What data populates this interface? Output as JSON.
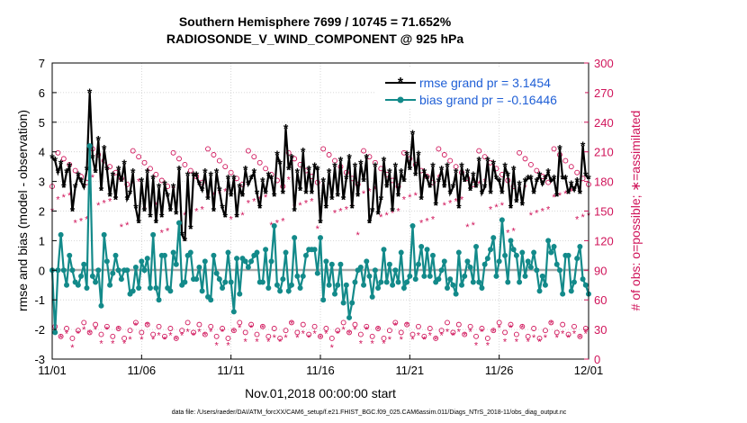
{
  "chart_data": {
    "type": "line",
    "title": "Southern Hemisphere 7699 / 10745 = 71.652%",
    "subtitle": "RADIOSONDE_V_WIND_COMPONENT @ 925 hPa",
    "xlabel": "Nov.01,2018 00:00:00 start",
    "ylabel": "rmse and bias (model - observation)",
    "y2label": "# of obs: o=possible; ∗=assimilated",
    "footer": "data file: /Users/raeder/DAI/ATM_forcXX/CAM6_setup/f.e21.FHIST_BGC.f09_025.CAM6assim.011/Diags_NTrS_2018-11/obs_diag_output.nc",
    "x_ticks": [
      "11/01",
      "11/06",
      "11/11",
      "11/16",
      "11/21",
      "11/26",
      "12/01"
    ],
    "y_ticks": [
      "-3",
      "-2",
      "-1",
      "0",
      "1",
      "2",
      "3",
      "4",
      "5",
      "6",
      "7"
    ],
    "y2_ticks": [
      "0",
      "30",
      "60",
      "90",
      "120",
      "150",
      "180",
      "210",
      "240",
      "270",
      "300"
    ],
    "ylim": [
      -3,
      7
    ],
    "y2lim": [
      0,
      300
    ],
    "xlim": [
      0,
      30
    ],
    "grid": true,
    "legend_position": "top-right",
    "colors": {
      "rmse": "#000000",
      "bias": "#138a8a",
      "obs": "#d0145a",
      "zero": "#aaaaaa"
    },
    "series": [
      {
        "name": "rmse grand pr = 3.1454",
        "values": [
          3.8,
          3.7,
          3.3,
          3.6,
          2.8,
          3.3,
          3.5,
          2.0,
          2.8,
          3.2,
          3.0,
          2.8,
          3.4,
          6.0,
          3.8,
          3.3,
          4.4,
          2.7,
          4.1,
          3.4,
          2.5,
          3.2,
          2.4,
          3.4,
          3.0,
          3.6,
          2.4,
          2.6,
          3.3,
          2.1,
          1.6,
          3.0,
          2.0,
          3.3,
          1.8,
          3.1,
          1.6,
          2.8,
          1.8,
          2.9,
          2.5,
          2.0,
          2.8,
          1.9,
          3.4,
          1.2,
          1.0,
          3.2,
          1.4,
          3.2,
          3.2,
          2.9,
          2.7,
          3.3,
          2.4,
          3.2,
          2.0,
          3.3,
          2.7,
          2.1,
          1.8,
          3.1,
          2.5,
          3.1,
          1.8,
          2.8,
          2.5,
          3.4,
          2.9,
          3.1,
          3.3,
          2.6,
          2.1,
          3.0,
          2.6,
          3.2,
          3.1,
          2.5,
          3.9,
          3.6,
          2.6,
          4.8,
          3.4,
          3.8,
          2.0,
          3.3,
          2.7,
          4.0,
          2.6,
          3.4,
          2.6,
          3.5,
          3.4,
          1.6,
          3.0,
          2.1,
          3.3,
          2.4,
          3.5,
          2.5,
          3.7,
          2.4,
          3.1,
          3.8,
          2.1,
          3.5,
          2.5,
          3.6,
          3.0,
          3.8,
          1.6,
          2.0,
          3.5,
          1.9,
          2.4,
          3.7,
          2.8,
          3.3,
          2.0,
          3.5,
          2.5,
          3.3,
          3.0,
          3.9,
          3.4,
          4.6,
          3.2,
          3.9,
          2.4,
          3.3,
          3.1,
          2.8,
          3.5,
          2.2,
          3.0,
          3.4,
          2.8,
          3.5,
          2.6,
          2.8,
          3.3,
          2.1,
          3.5,
          3.0,
          3.3,
          2.7,
          3.2,
          2.8,
          3.7,
          2.6,
          2.8,
          3.7,
          2.6,
          3.6,
          3.1,
          3.0,
          2.6,
          3.5,
          3.2,
          2.1,
          3.4,
          2.3,
          2.9,
          2.2,
          3.0,
          3.1,
          3.1,
          2.6,
          3.0,
          3.2,
          2.9,
          3.1,
          3.3,
          3.0,
          3.1,
          2.5,
          4.1,
          3.1,
          3.1,
          2.6,
          2.9,
          2.7,
          3.0,
          2.6,
          4.2,
          3.2,
          3.1
        ]
      },
      {
        "name": "bias grand pr = -0.16446",
        "values": [
          0.0,
          -2.1,
          0.0,
          1.2,
          0.0,
          -0.5,
          0.5,
          0.0,
          -0.4,
          -0.5,
          -0.2,
          0.2,
          -0.6,
          4.2,
          -0.2,
          -0.4,
          0.0,
          -1.2,
          1.2,
          0.3,
          -0.5,
          -0.1,
          0.5,
          0.0,
          -0.3,
          0.0,
          0.0,
          -0.8,
          -0.7,
          0.1,
          -0.6,
          0.3,
          0.0,
          0.4,
          -0.6,
          1.2,
          -0.6,
          -1.0,
          0.5,
          0.5,
          -0.6,
          -0.7,
          0.6,
          0.2,
          1.6,
          -0.5,
          -0.4,
          0.5,
          0.6,
          -0.3,
          -0.3,
          0.1,
          -0.7,
          0.3,
          -0.9,
          -1.0,
          0.5,
          -0.1,
          -0.3,
          -0.6,
          -0.4,
          0.6,
          -0.4,
          -1.4,
          0.4,
          -0.8,
          0.4,
          0.3,
          0.1,
          0.3,
          0.5,
          0.6,
          -0.4,
          -0.4,
          0.7,
          -0.6,
          0.3,
          1.5,
          -0.5,
          -0.7,
          -0.3,
          0.6,
          -0.7,
          -0.5,
          1.1,
          -0.2,
          -0.6,
          -0.2,
          0.5,
          0.7,
          0.7,
          0.7,
          -0.1,
          1.1,
          -1.0,
          0.3,
          -0.5,
          0.2,
          -0.8,
          -0.5,
          0.2,
          -1.1,
          -0.5,
          -1.6,
          -1.1,
          -0.4,
          0.0,
          0.1,
          -0.5,
          0.3,
          -0.2,
          -0.9,
          0.0,
          -0.6,
          -0.4,
          0.7,
          -0.4,
          0.2,
          -0.5,
          0.0,
          -0.4,
          0.6,
          -0.6,
          -0.4,
          -0.2,
          1.5,
          -0.3,
          0.2,
          0.8,
          -0.2,
          0.7,
          -0.2,
          0.5,
          -0.4,
          -0.3,
          0.0,
          0.3,
          -0.6,
          -0.3,
          -0.5,
          -0.8,
          0.6,
          -0.5,
          -0.2,
          0.3,
          0.1,
          -0.4,
          0.8,
          -0.4,
          -0.6,
          0.2,
          0.4,
          0.7,
          1.1,
          -0.2,
          0.3,
          1.7,
          0.5,
          -0.4,
          1.0,
          0.7,
          0.5,
          -0.4,
          0.6,
          -0.2,
          0.3,
          0.1,
          0.6,
          0.0,
          -0.7,
          -0.2,
          -0.5,
          1.0,
          0.6,
          0.8,
          0.2,
          0.0,
          -0.8,
          0.5,
          0.5,
          -0.7,
          -0.4,
          0.4,
          0.8,
          -0.3,
          -0.5,
          -0.8
        ]
      }
    ]
  }
}
